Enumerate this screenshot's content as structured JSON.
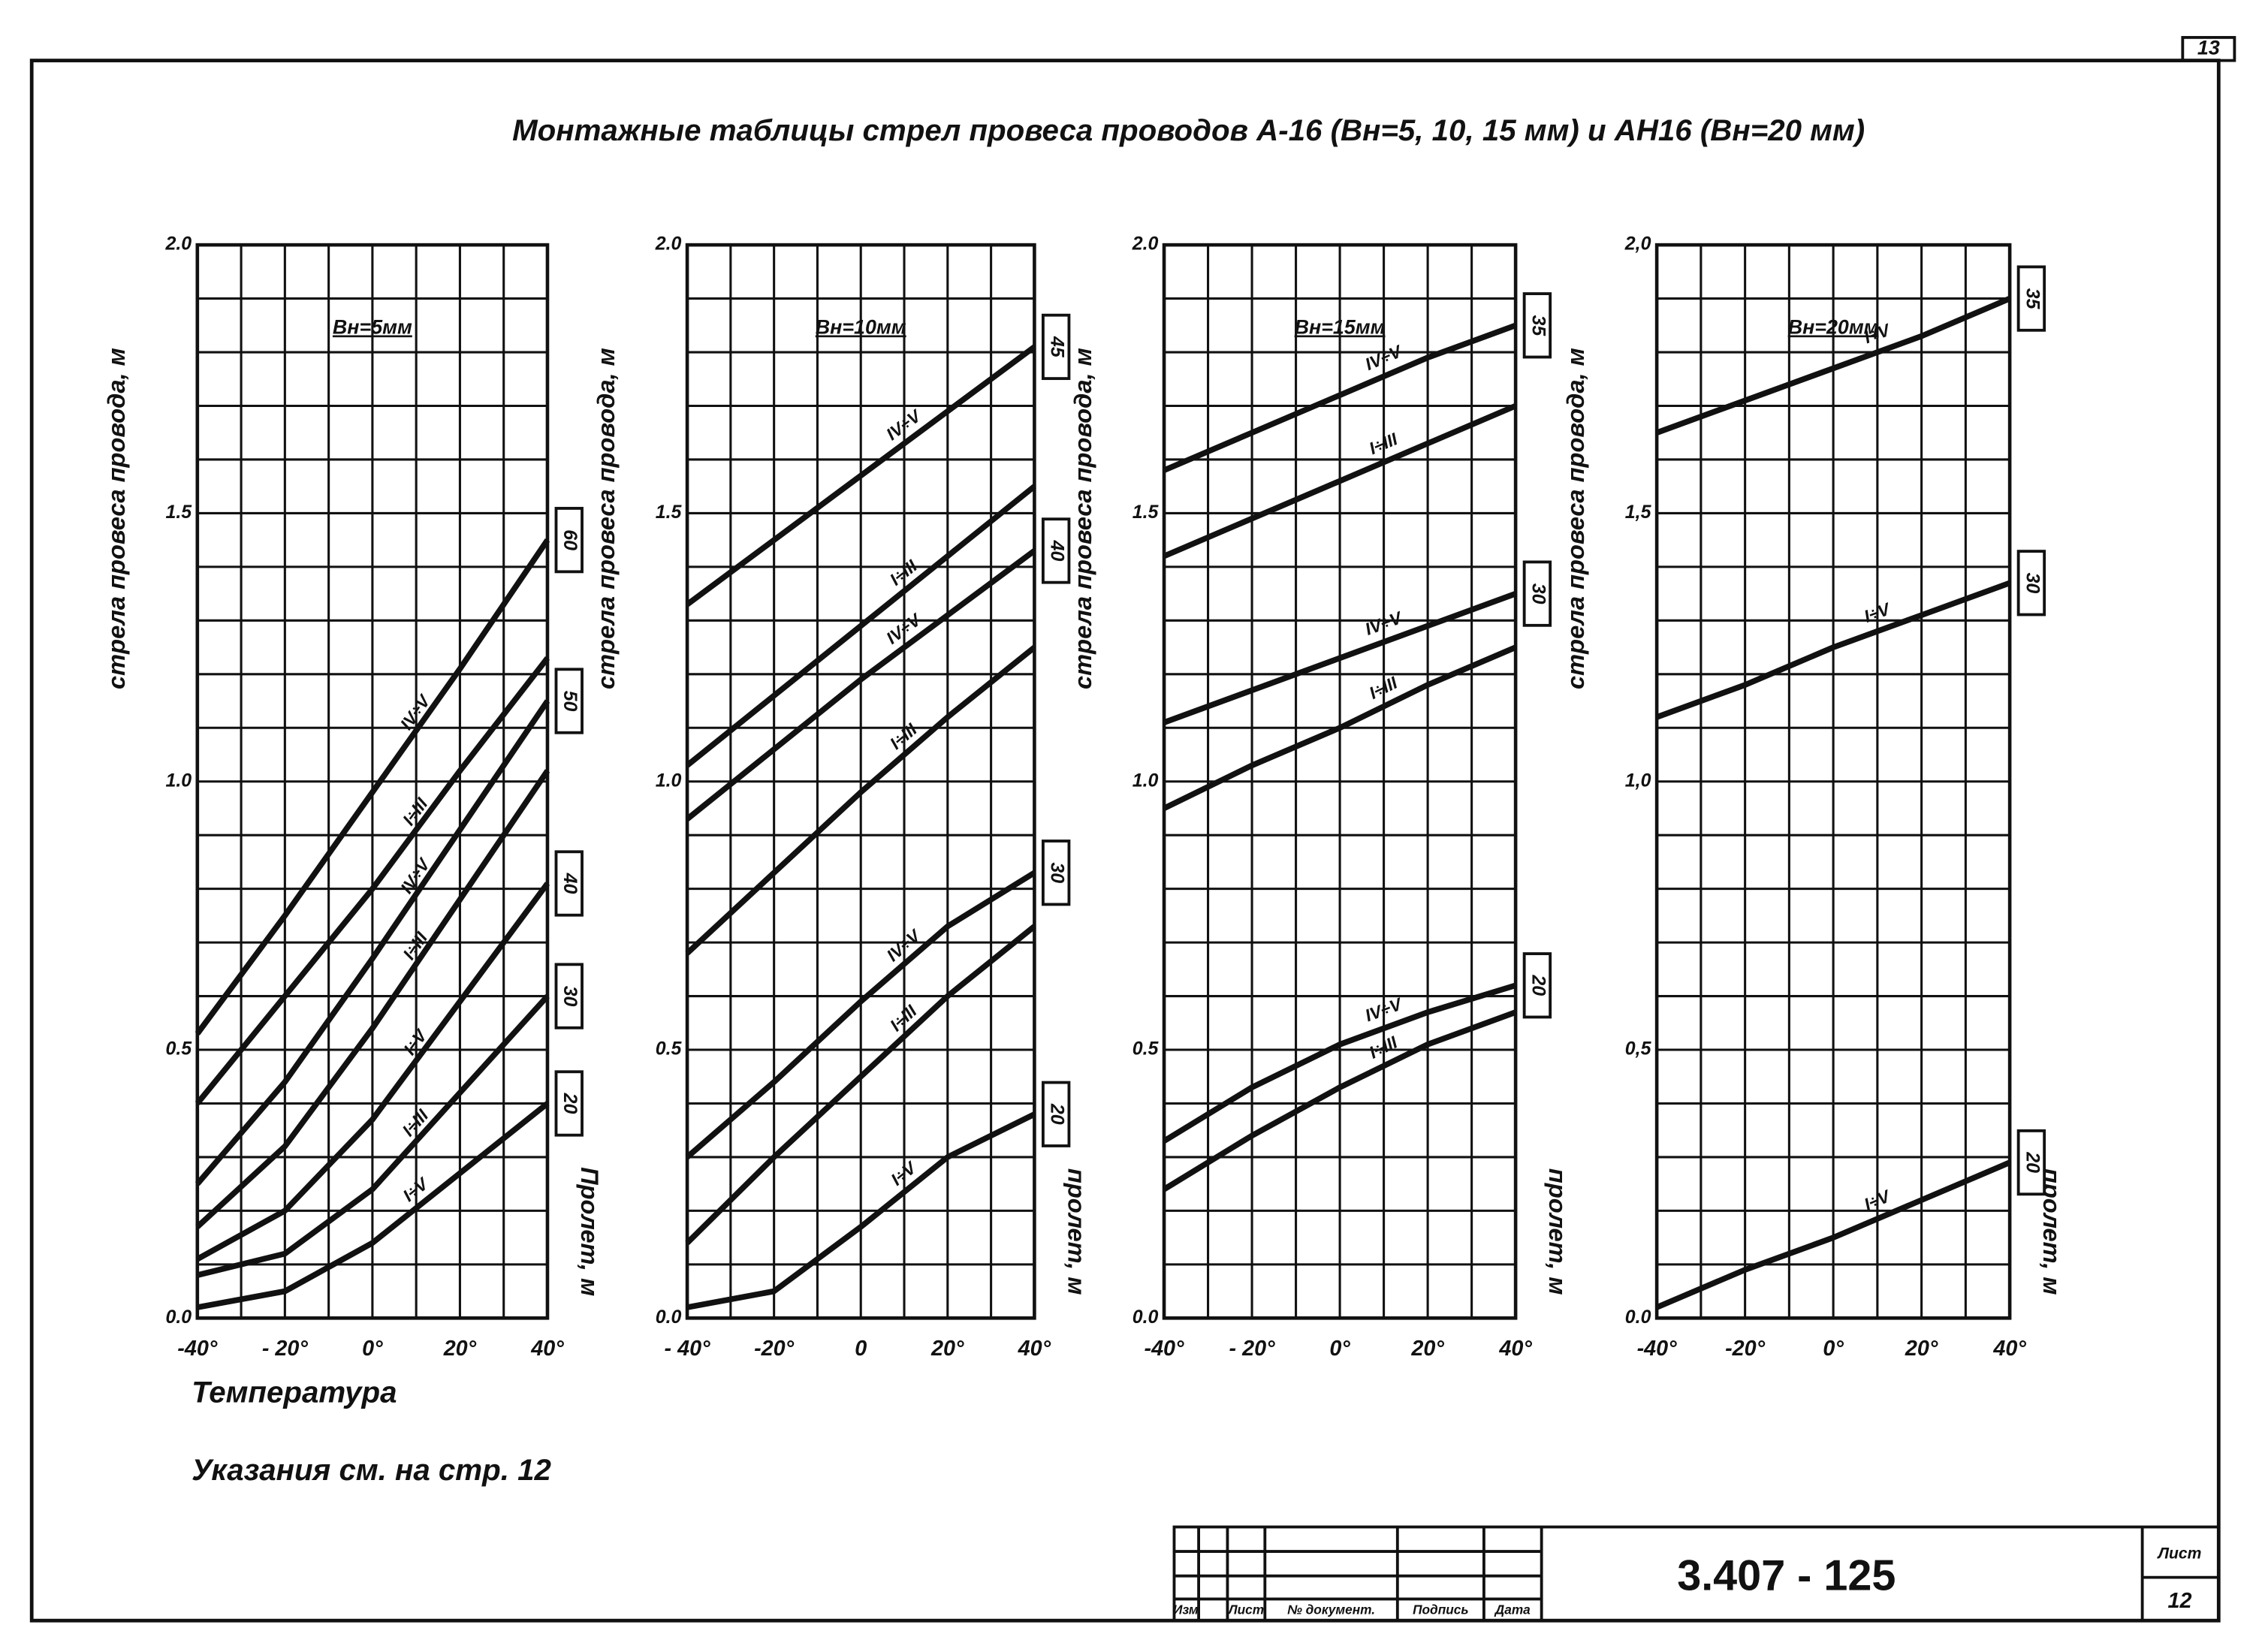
{
  "title": "Монтажные таблицы стрел провеса проводов А-16 (Вн=5, 10, 15 мм) и АН16 (Вн=20 мм)",
  "page_number": "13",
  "xlabel": "Температура",
  "note": "Указания см. на стр. 12",
  "stamp": {
    "columns": [
      "Изм",
      "Лист",
      "№ документ.",
      "Подпись",
      "Дата"
    ],
    "code": "3.407 - 125",
    "sheet_label": "Лист",
    "sheet": "12"
  },
  "chart_data": [
    {
      "type": "line",
      "title": "Вн=5мм",
      "ylabel": "стрела провеса провода, м",
      "span_axis_label": "Пролет, м",
      "x": [
        -40,
        -20,
        0,
        20,
        40
      ],
      "xlim": [
        -40,
        40
      ],
      "ylim": [
        0,
        2
      ],
      "xticks": [
        {
          "value": -40,
          "label": "-40°"
        },
        {
          "value": -20,
          "label": "- 20°"
        },
        {
          "value": 0,
          "label": "0°"
        },
        {
          "value": 20,
          "label": "20°"
        },
        {
          "value": 40,
          "label": "40°"
        }
      ],
      "yticks": [
        {
          "value": 0,
          "label": "0.0"
        },
        {
          "value": 0.5,
          "label": "0.5"
        },
        {
          "value": 1,
          "label": "1.0"
        },
        {
          "value": 1.5,
          "label": "1.5"
        },
        {
          "value": 2,
          "label": "2.0"
        }
      ],
      "xgrid": [
        -40,
        -30,
        -20,
        -10,
        0,
        10,
        20,
        30,
        40
      ],
      "ygrid": [
        0,
        0.1,
        0.2,
        0.3,
        0.4,
        0.5,
        0.6,
        0.7,
        0.8,
        0.9,
        1,
        1.1,
        1.2,
        1.3,
        1.4,
        1.5,
        1.6,
        1.7,
        1.8,
        1.9,
        2
      ],
      "series": [
        {
          "name": "IV÷V",
          "color": "#111111",
          "span": "60",
          "values": [
            0.53,
            0.75,
            0.98,
            1.21,
            1.45
          ]
        },
        {
          "name": "I÷III",
          "color": "#111111",
          "values": [
            0.4,
            0.6,
            0.8,
            1.02,
            1.23
          ]
        },
        {
          "name": "IV÷V",
          "color": "#111111",
          "span": "50",
          "values": [
            0.25,
            0.44,
            0.67,
            0.91,
            1.15
          ]
        },
        {
          "name": "I÷III",
          "color": "#111111",
          "values": [
            0.17,
            0.32,
            0.54,
            0.78,
            1.02
          ]
        },
        {
          "name": "I÷V",
          "color": "#111111",
          "span": "40",
          "values": [
            0.11,
            0.2,
            0.37,
            0.59,
            0.81
          ]
        },
        {
          "name": "I÷III",
          "color": "#111111",
          "span": "30",
          "values": [
            0.08,
            0.12,
            0.24,
            0.42,
            0.6
          ]
        },
        {
          "name": "I÷V",
          "color": "#111111",
          "span": "20",
          "values": [
            0.02,
            0.05,
            0.14,
            0.27,
            0.4
          ]
        }
      ]
    },
    {
      "type": "line",
      "title": "Вн=10мм",
      "ylabel": "стрела провеса провода, м",
      "span_axis_label": "пролет, м",
      "x": [
        -40,
        -20,
        0,
        20,
        40
      ],
      "xlim": [
        -40,
        40
      ],
      "ylim": [
        0,
        2
      ],
      "xticks": [
        {
          "value": -40,
          "label": "- 40°"
        },
        {
          "value": -20,
          "label": "-20°"
        },
        0,
        {
          "value": 20,
          "label": "20°"
        },
        {
          "value": 40,
          "label": "40°"
        }
      ],
      "yticks": [
        {
          "value": 0,
          "label": "0.0"
        },
        {
          "value": 0.5,
          "label": "0.5"
        },
        {
          "value": 1,
          "label": "1.0"
        },
        {
          "value": 1.5,
          "label": "1.5"
        },
        {
          "value": 2,
          "label": "2.0"
        }
      ],
      "xgrid": [
        -40,
        -30,
        -20,
        -10,
        0,
        10,
        20,
        30,
        40
      ],
      "ygrid": [
        0,
        0.1,
        0.2,
        0.3,
        0.4,
        0.5,
        0.6,
        0.7,
        0.8,
        0.9,
        1,
        1.1,
        1.2,
        1.3,
        1.4,
        1.5,
        1.6,
        1.7,
        1.8,
        1.9,
        2
      ],
      "series": [
        {
          "name": "IV÷V",
          "color": "#111111",
          "span": "45",
          "values": [
            1.33,
            1.45,
            1.57,
            1.69,
            1.81
          ]
        },
        {
          "name": "I÷III",
          "color": "#111111",
          "values": [
            1.03,
            1.16,
            1.29,
            1.42,
            1.55
          ]
        },
        {
          "name": "IV÷V",
          "color": "#111111",
          "span": "40",
          "values": [
            0.93,
            1.06,
            1.19,
            1.31,
            1.43
          ]
        },
        {
          "name": "I÷III",
          "color": "#111111",
          "values": [
            0.68,
            0.83,
            0.98,
            1.12,
            1.25
          ]
        },
        {
          "name": "IV÷V",
          "color": "#111111",
          "span": "30",
          "values": [
            0.3,
            0.44,
            0.59,
            0.73,
            0.83
          ]
        },
        {
          "name": "I÷III",
          "color": "#111111",
          "values": [
            0.14,
            0.3,
            0.45,
            0.6,
            0.73
          ]
        },
        {
          "name": "I÷V",
          "color": "#111111",
          "span": "20",
          "values": [
            0.02,
            0.05,
            0.17,
            0.3,
            0.38
          ]
        }
      ]
    },
    {
      "type": "line",
      "title": "Вн=15мм",
      "ylabel": "стрела провеса провода, м",
      "span_axis_label": "пролет, м",
      "x": [
        -40,
        -20,
        0,
        20,
        40
      ],
      "xlim": [
        -40,
        40
      ],
      "ylim": [
        0,
        2
      ],
      "xticks": [
        {
          "value": -40,
          "label": "-40°"
        },
        {
          "value": -20,
          "label": "- 20°"
        },
        {
          "value": 0,
          "label": "0°"
        },
        {
          "value": 20,
          "label": "20°"
        },
        {
          "value": 40,
          "label": "40°"
        }
      ],
      "yticks": [
        {
          "value": 0,
          "label": "0.0"
        },
        {
          "value": 0.5,
          "label": "0.5"
        },
        {
          "value": 1,
          "label": "1.0"
        },
        {
          "value": 1.5,
          "label": "1.5"
        },
        {
          "value": 2,
          "label": "2.0"
        }
      ],
      "xgrid": [
        -40,
        -30,
        -20,
        -10,
        0,
        10,
        20,
        30,
        40
      ],
      "ygrid": [
        0,
        0.1,
        0.2,
        0.3,
        0.4,
        0.5,
        0.6,
        0.7,
        0.8,
        0.9,
        1,
        1.1,
        1.2,
        1.3,
        1.4,
        1.5,
        1.6,
        1.7,
        1.8,
        1.9,
        2
      ],
      "series": [
        {
          "name": "IV÷V",
          "color": "#111111",
          "span": "35",
          "values": [
            1.58,
            1.65,
            1.72,
            1.79,
            1.85
          ]
        },
        {
          "name": "I÷III",
          "color": "#111111",
          "values": [
            1.42,
            1.49,
            1.56,
            1.63,
            1.7
          ]
        },
        {
          "name": "IV÷V",
          "color": "#111111",
          "span": "30",
          "values": [
            1.11,
            1.17,
            1.23,
            1.29,
            1.35
          ]
        },
        {
          "name": "I÷III",
          "color": "#111111",
          "values": [
            0.95,
            1.03,
            1.1,
            1.18,
            1.25
          ]
        },
        {
          "name": "IV÷V",
          "color": "#111111",
          "span": "20",
          "values": [
            0.33,
            0.43,
            0.51,
            0.57,
            0.62
          ]
        },
        {
          "name": "I÷III",
          "color": "#111111",
          "values": [
            0.24,
            0.34,
            0.43,
            0.51,
            0.57
          ]
        }
      ]
    },
    {
      "type": "line",
      "title": "Вн=20мм",
      "ylabel": "стрела провеса провода, м",
      "span_axis_label": "пролет, м",
      "x": [
        -40,
        -20,
        0,
        20,
        40
      ],
      "xlim": [
        -40,
        40
      ],
      "ylim": [
        0,
        2
      ],
      "xticks": [
        {
          "value": -40,
          "label": "-40°"
        },
        {
          "value": -20,
          "label": "-20°"
        },
        {
          "value": 0,
          "label": "0°"
        },
        {
          "value": 20,
          "label": "20°"
        },
        {
          "value": 40,
          "label": "40°"
        }
      ],
      "yticks": [
        {
          "value": 0,
          "label": "0.0"
        },
        {
          "value": 0.5,
          "label": "0,5"
        },
        {
          "value": 1,
          "label": "1,0"
        },
        {
          "value": 1.5,
          "label": "1,5"
        },
        {
          "value": 2,
          "label": "2,0"
        }
      ],
      "xgrid": [
        -40,
        -30,
        -20,
        -10,
        0,
        10,
        20,
        30,
        40
      ],
      "ygrid": [
        0,
        0.1,
        0.2,
        0.3,
        0.4,
        0.5,
        0.6,
        0.7,
        0.8,
        0.9,
        1,
        1.1,
        1.2,
        1.3,
        1.4,
        1.5,
        1.6,
        1.7,
        1.8,
        1.9,
        2
      ],
      "series": [
        {
          "name": "I÷V",
          "color": "#111111",
          "span": "35",
          "values": [
            1.65,
            1.71,
            1.77,
            1.83,
            1.9
          ]
        },
        {
          "name": "I÷V",
          "color": "#111111",
          "span": "30",
          "values": [
            1.12,
            1.18,
            1.25,
            1.31,
            1.37
          ]
        },
        {
          "name": "I÷V",
          "color": "#111111",
          "span": "20",
          "values": [
            0.02,
            0.09,
            0.15,
            0.22,
            0.29
          ]
        }
      ]
    }
  ]
}
